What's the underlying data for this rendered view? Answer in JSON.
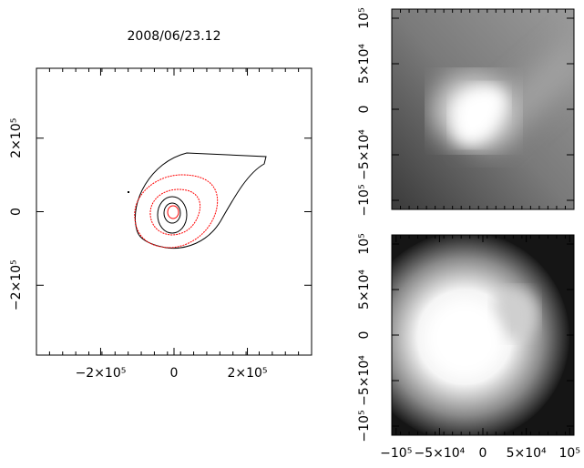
{
  "chart_data": [
    {
      "type": "contour",
      "title": "2008/06/23.12",
      "xlim": [
        -375000,
        375000
      ],
      "ylim": [
        -390000,
        390000
      ],
      "xticks": [
        {
          "value": -200000,
          "label": "−2×10⁵"
        },
        0,
        {
          "value": 200000,
          "label": "2×10⁵"
        }
      ],
      "yticks": [
        {
          "value": -200000,
          "label": "−2×10⁵"
        },
        0,
        {
          "value": 200000,
          "label": "2×10⁵"
        }
      ],
      "contour_colors": [
        "#000000",
        "#ff0000"
      ]
    },
    {
      "type": "image",
      "colormap": "gray",
      "xlim": [
        -105000,
        105000
      ],
      "ylim": [
        -110000,
        110000
      ],
      "yticks": [
        {
          "value": -100000,
          "label": "−10⁵"
        },
        {
          "value": -50000,
          "label": "−5×10⁴"
        },
        0,
        {
          "value": 50000,
          "label": "5×10⁴"
        },
        {
          "value": 100000,
          "label": "10⁵"
        }
      ]
    },
    {
      "type": "image",
      "colormap": "gray",
      "xlim": [
        -105000,
        105000
      ],
      "ylim": [
        -110000,
        110000
      ],
      "xticks": [
        {
          "value": -100000,
          "label": "−10⁵"
        },
        {
          "value": -50000,
          "label": "−5×10⁴"
        },
        0,
        {
          "value": 50000,
          "label": "5×10⁴"
        },
        {
          "value": 100000,
          "label": "10⁵"
        }
      ],
      "yticks": [
        {
          "value": -100000,
          "label": "−10⁵"
        },
        {
          "value": -50000,
          "label": "−5×10⁴"
        },
        0,
        {
          "value": 50000,
          "label": "5×10⁴"
        },
        {
          "value": 100000,
          "label": "10⁵"
        }
      ]
    }
  ]
}
